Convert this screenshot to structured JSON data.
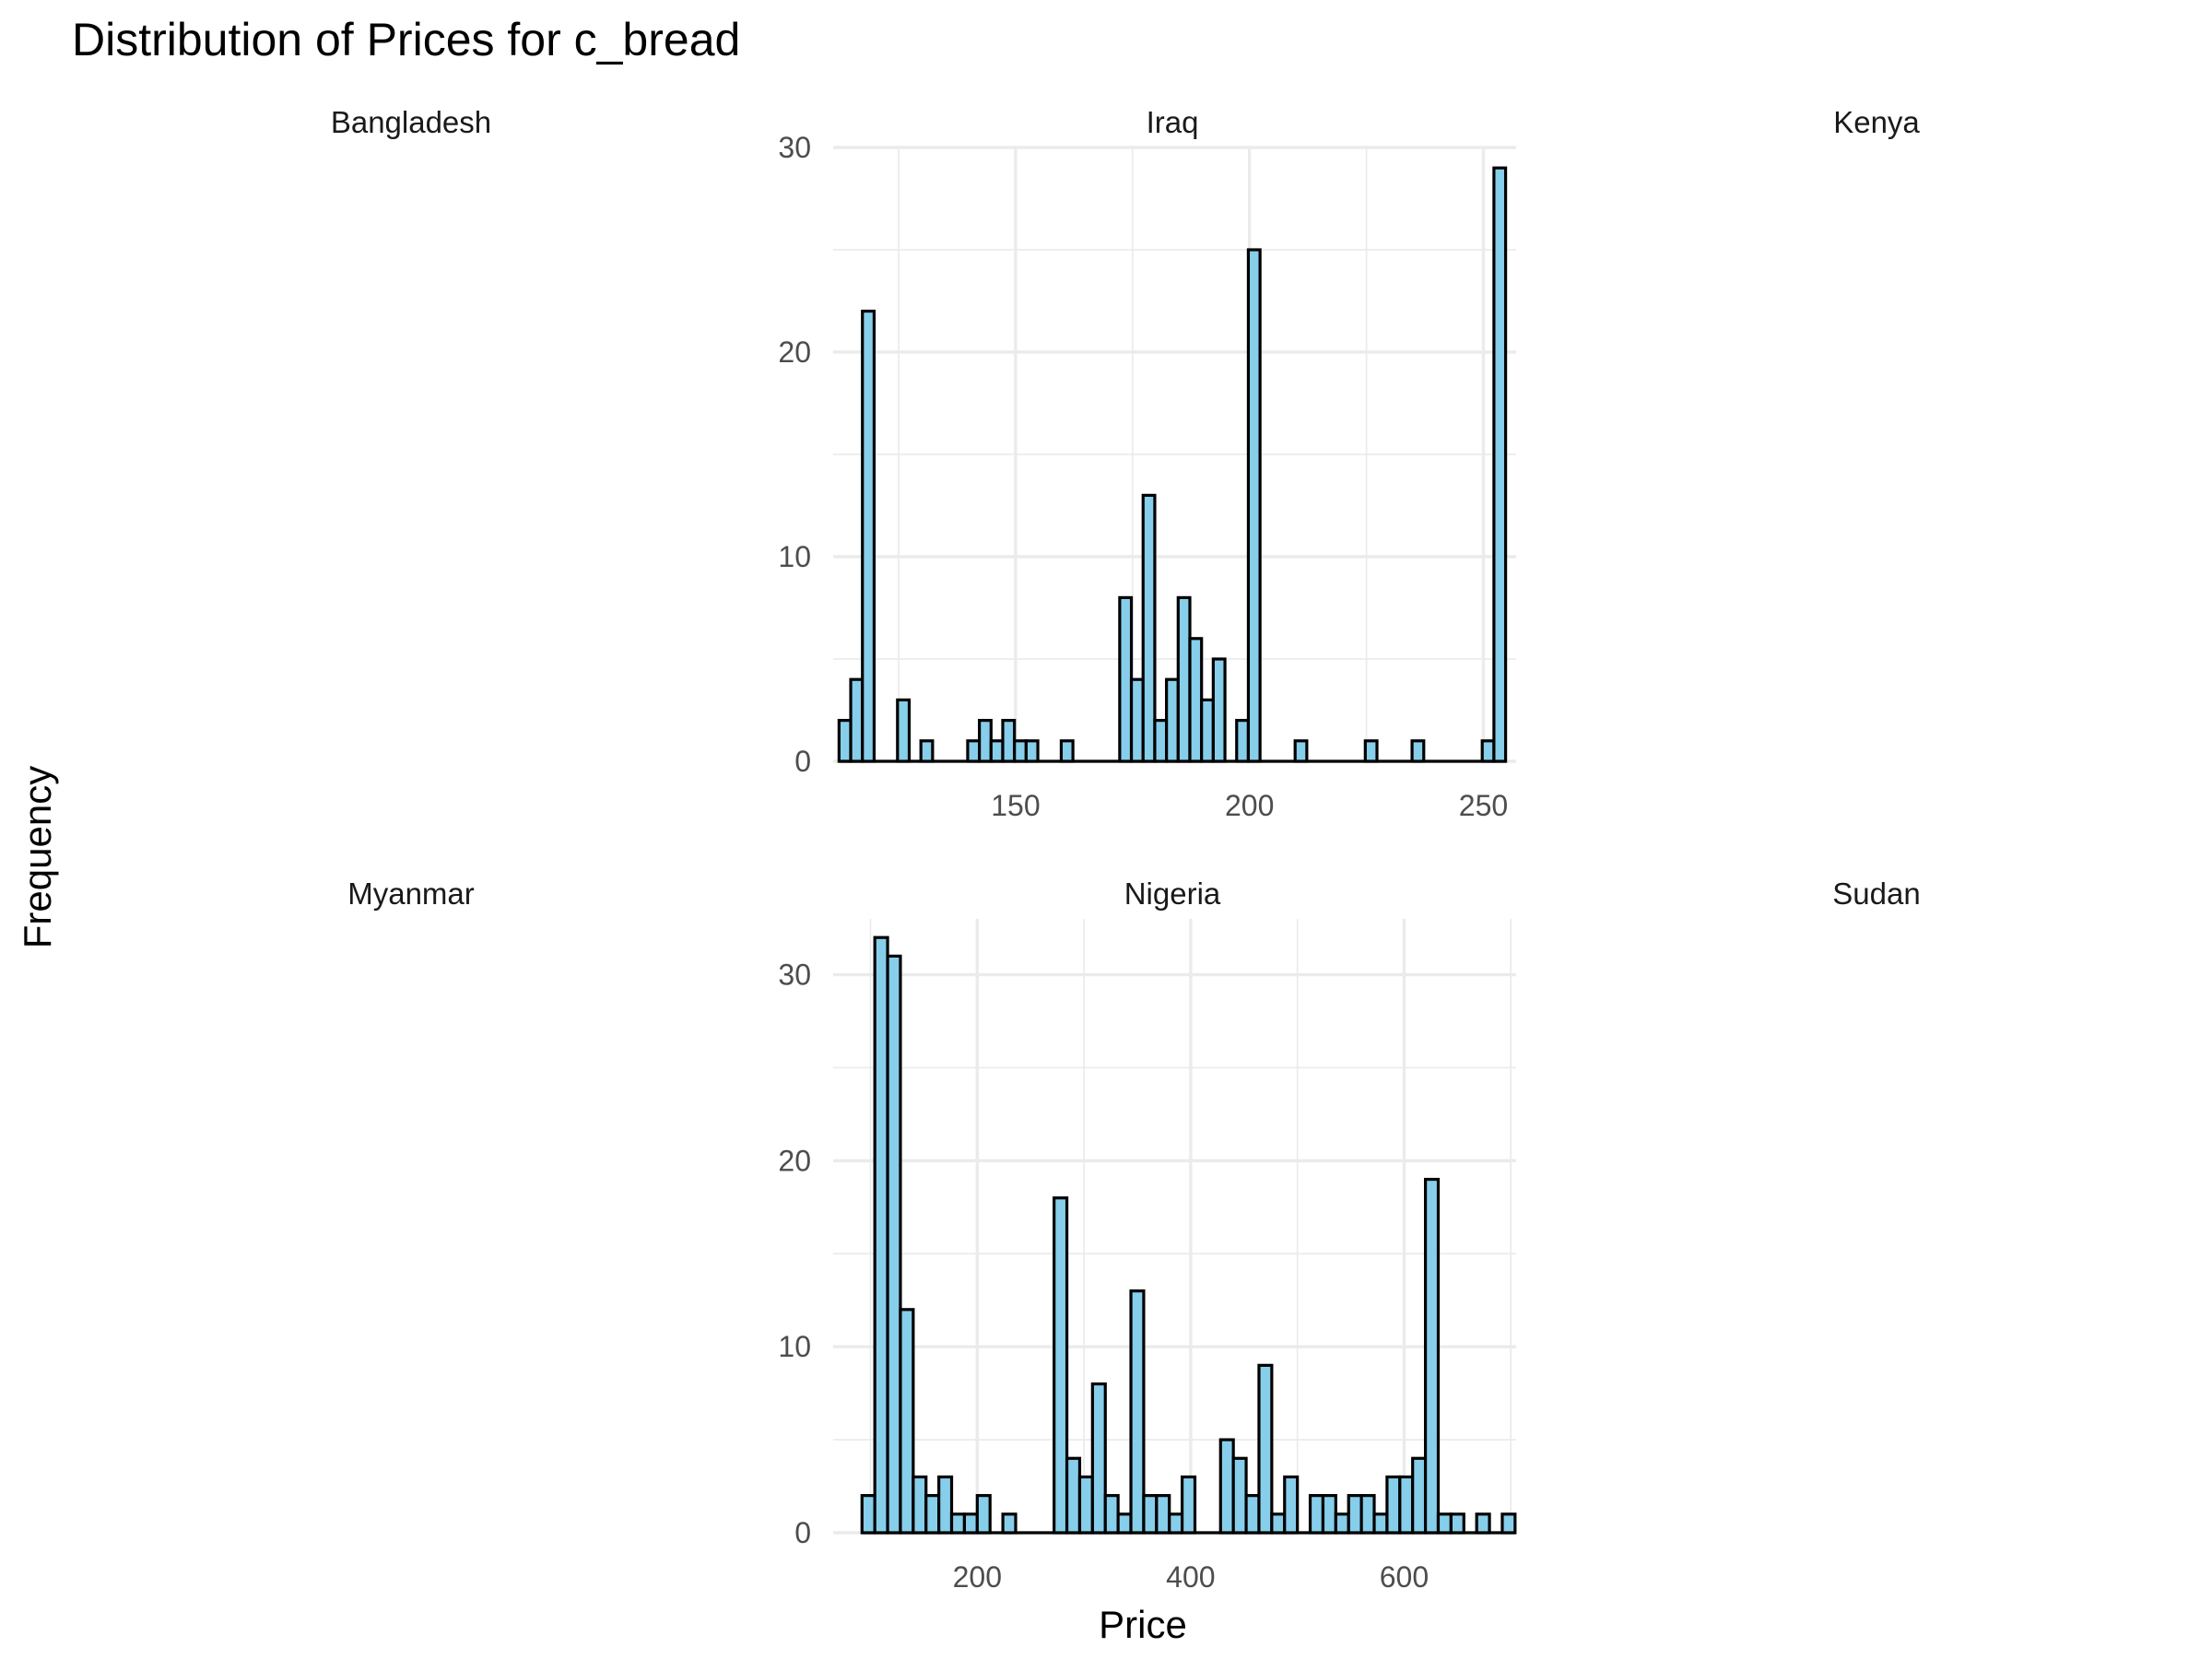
{
  "chart_data": {
    "type": "bar",
    "title": "Distribution of Prices for c_bread",
    "xlabel": "Price",
    "ylabel": "Frequency",
    "colors": {
      "fill": "#87ceeb",
      "outline": "#000000",
      "grid": "#ebebeb"
    },
    "facets": [
      {
        "label": "Bangladesh",
        "has_data": false
      },
      {
        "label": "Iraq",
        "has_data": true,
        "xlim": [
          111,
          257
        ],
        "ylim": [
          0,
          30
        ],
        "xticks": [
          150,
          200,
          250
        ],
        "yticks": [
          0,
          10,
          20,
          30
        ],
        "binwidth": 2.5,
        "bins": [
          {
            "x": 113.5,
            "count": 2
          },
          {
            "x": 116.0,
            "count": 4
          },
          {
            "x": 118.5,
            "count": 22
          },
          {
            "x": 121.0,
            "count": 0
          },
          {
            "x": 123.5,
            "count": 0
          },
          {
            "x": 126.0,
            "count": 3
          },
          {
            "x": 128.5,
            "count": 0
          },
          {
            "x": 131.0,
            "count": 1
          },
          {
            "x": 133.5,
            "count": 0
          },
          {
            "x": 136.0,
            "count": 0
          },
          {
            "x": 138.5,
            "count": 0
          },
          {
            "x": 141.0,
            "count": 1
          },
          {
            "x": 143.5,
            "count": 2
          },
          {
            "x": 146.0,
            "count": 1
          },
          {
            "x": 148.5,
            "count": 2
          },
          {
            "x": 151.0,
            "count": 1
          },
          {
            "x": 153.5,
            "count": 1
          },
          {
            "x": 156.0,
            "count": 0
          },
          {
            "x": 158.5,
            "count": 0
          },
          {
            "x": 161.0,
            "count": 1
          },
          {
            "x": 163.5,
            "count": 0
          },
          {
            "x": 166.0,
            "count": 0
          },
          {
            "x": 168.5,
            "count": 0
          },
          {
            "x": 171.0,
            "count": 0
          },
          {
            "x": 173.5,
            "count": 8
          },
          {
            "x": 176.0,
            "count": 4
          },
          {
            "x": 178.5,
            "count": 13
          },
          {
            "x": 181.0,
            "count": 2
          },
          {
            "x": 183.5,
            "count": 4
          },
          {
            "x": 186.0,
            "count": 8
          },
          {
            "x": 188.5,
            "count": 6
          },
          {
            "x": 191.0,
            "count": 3
          },
          {
            "x": 193.5,
            "count": 5
          },
          {
            "x": 196.0,
            "count": 0
          },
          {
            "x": 198.5,
            "count": 2
          },
          {
            "x": 201.0,
            "count": 25
          },
          {
            "x": 203.5,
            "count": 0
          },
          {
            "x": 206.0,
            "count": 0
          },
          {
            "x": 208.5,
            "count": 0
          },
          {
            "x": 211.0,
            "count": 1
          },
          {
            "x": 213.5,
            "count": 0
          },
          {
            "x": 216.0,
            "count": 0
          },
          {
            "x": 218.5,
            "count": 0
          },
          {
            "x": 221.0,
            "count": 0
          },
          {
            "x": 223.5,
            "count": 0
          },
          {
            "x": 226.0,
            "count": 1
          },
          {
            "x": 228.5,
            "count": 0
          },
          {
            "x": 231.0,
            "count": 0
          },
          {
            "x": 233.5,
            "count": 0
          },
          {
            "x": 236.0,
            "count": 1
          },
          {
            "x": 238.5,
            "count": 0
          },
          {
            "x": 241.0,
            "count": 0
          },
          {
            "x": 243.5,
            "count": 0
          },
          {
            "x": 246.0,
            "count": 0
          },
          {
            "x": 248.5,
            "count": 0
          },
          {
            "x": 251.0,
            "count": 1
          },
          {
            "x": 253.5,
            "count": 29
          }
        ]
      },
      {
        "label": "Kenya",
        "has_data": false
      },
      {
        "label": "Myanmar",
        "has_data": false
      },
      {
        "label": "Nigeria",
        "has_data": true,
        "xlim": [
          65,
          705
        ],
        "ylim": [
          0,
          33
        ],
        "xticks": [
          200,
          400,
          600
        ],
        "yticks": [
          0,
          10,
          20,
          30
        ],
        "binwidth": 12,
        "bins": [
          {
            "x": 98,
            "count": 2
          },
          {
            "x": 110,
            "count": 32
          },
          {
            "x": 122,
            "count": 31
          },
          {
            "x": 134,
            "count": 12
          },
          {
            "x": 146,
            "count": 3
          },
          {
            "x": 158,
            "count": 2
          },
          {
            "x": 170,
            "count": 3
          },
          {
            "x": 182,
            "count": 1
          },
          {
            "x": 194,
            "count": 1
          },
          {
            "x": 206,
            "count": 2
          },
          {
            "x": 218,
            "count": 0
          },
          {
            "x": 230,
            "count": 1
          },
          {
            "x": 242,
            "count": 0
          },
          {
            "x": 254,
            "count": 0
          },
          {
            "x": 266,
            "count": 0
          },
          {
            "x": 278,
            "count": 18
          },
          {
            "x": 290,
            "count": 4
          },
          {
            "x": 302,
            "count": 3
          },
          {
            "x": 314,
            "count": 8
          },
          {
            "x": 326,
            "count": 2
          },
          {
            "x": 338,
            "count": 1
          },
          {
            "x": 350,
            "count": 13
          },
          {
            "x": 362,
            "count": 2
          },
          {
            "x": 374,
            "count": 2
          },
          {
            "x": 386,
            "count": 1
          },
          {
            "x": 398,
            "count": 3
          },
          {
            "x": 410,
            "count": 0
          },
          {
            "x": 422,
            "count": 0
          },
          {
            "x": 434,
            "count": 5
          },
          {
            "x": 446,
            "count": 4
          },
          {
            "x": 458,
            "count": 2
          },
          {
            "x": 470,
            "count": 9
          },
          {
            "x": 482,
            "count": 1
          },
          {
            "x": 494,
            "count": 3
          },
          {
            "x": 506,
            "count": 0
          },
          {
            "x": 518,
            "count": 2
          },
          {
            "x": 530,
            "count": 2
          },
          {
            "x": 542,
            "count": 1
          },
          {
            "x": 554,
            "count": 2
          },
          {
            "x": 566,
            "count": 2
          },
          {
            "x": 578,
            "count": 1
          },
          {
            "x": 590,
            "count": 3
          },
          {
            "x": 602,
            "count": 3
          },
          {
            "x": 614,
            "count": 4
          },
          {
            "x": 626,
            "count": 19
          },
          {
            "x": 638,
            "count": 1
          },
          {
            "x": 650,
            "count": 1
          },
          {
            "x": 662,
            "count": 0
          },
          {
            "x": 674,
            "count": 1
          },
          {
            "x": 686,
            "count": 0
          },
          {
            "x": 698,
            "count": 1
          }
        ]
      },
      {
        "label": "Sudan",
        "has_data": false
      }
    ]
  }
}
